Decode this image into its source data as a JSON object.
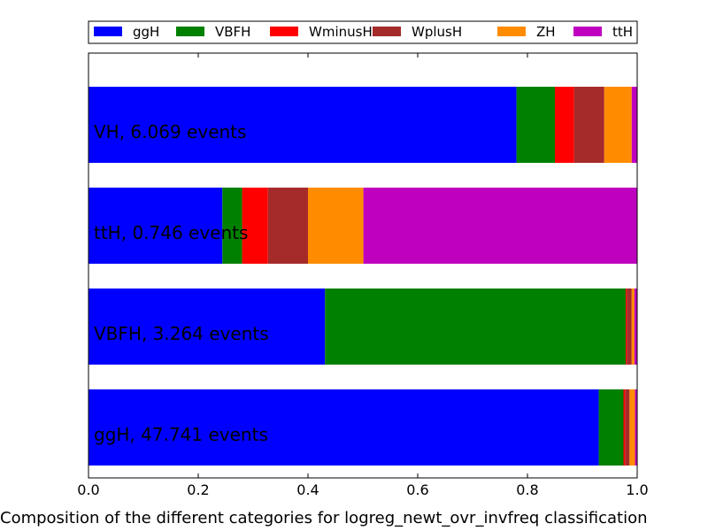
{
  "chart_data": {
    "type": "bar",
    "orientation": "horizontal",
    "stacked": true,
    "title": "",
    "xlabel": "Composition of the different categories for logreg_newt_ovr_invfreq classification",
    "ylabel": "",
    "xlim": [
      0.0,
      1.0
    ],
    "x_ticks": [
      "0.0",
      "0.2",
      "0.4",
      "0.6",
      "0.8",
      "1.0"
    ],
    "grid": false,
    "legend_position": "top",
    "categories": [
      "ggH, 47.741 events",
      "VBFH, 3.264 events",
      "ttH, 0.746 events",
      "VH, 6.069 events"
    ],
    "series": [
      {
        "name": "ggH",
        "color": "#0000ff",
        "values": [
          0.93,
          0.431,
          0.244,
          0.78
        ]
      },
      {
        "name": "VBFH",
        "color": "#008000",
        "values": [
          0.045,
          0.548,
          0.036,
          0.07
        ]
      },
      {
        "name": "WminusH",
        "color": "#ff0000",
        "values": [
          0.003,
          0.002,
          0.047,
          0.035
        ]
      },
      {
        "name": "WplusH",
        "color": "#a52a2a",
        "values": [
          0.008,
          0.009,
          0.073,
          0.055
        ]
      },
      {
        "name": "ZH",
        "color": "#ff8c00",
        "values": [
          0.01,
          0.005,
          0.101,
          0.05
        ]
      },
      {
        "name": "ttH",
        "color": "#bf00bf",
        "values": [
          0.004,
          0.005,
          0.499,
          0.01
        ]
      }
    ]
  }
}
